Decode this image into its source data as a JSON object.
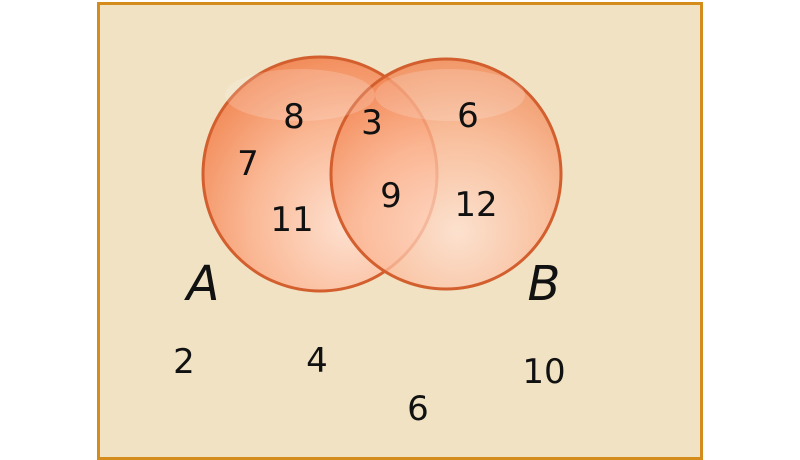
{
  "diagram": {
    "sets": [
      {
        "label": "A",
        "only": [
          "8",
          "7",
          "11"
        ]
      },
      {
        "label": "B",
        "only": [
          "6",
          "12"
        ]
      }
    ],
    "intersection": [
      "3",
      "9"
    ],
    "outside": [
      "2",
      "4",
      "10",
      "6"
    ],
    "colors": {
      "background": "#f0e2c3",
      "frame": "#d48c1d",
      "circle_fill": "#f79a6e",
      "circle_edge": "#d35f2f"
    }
  }
}
